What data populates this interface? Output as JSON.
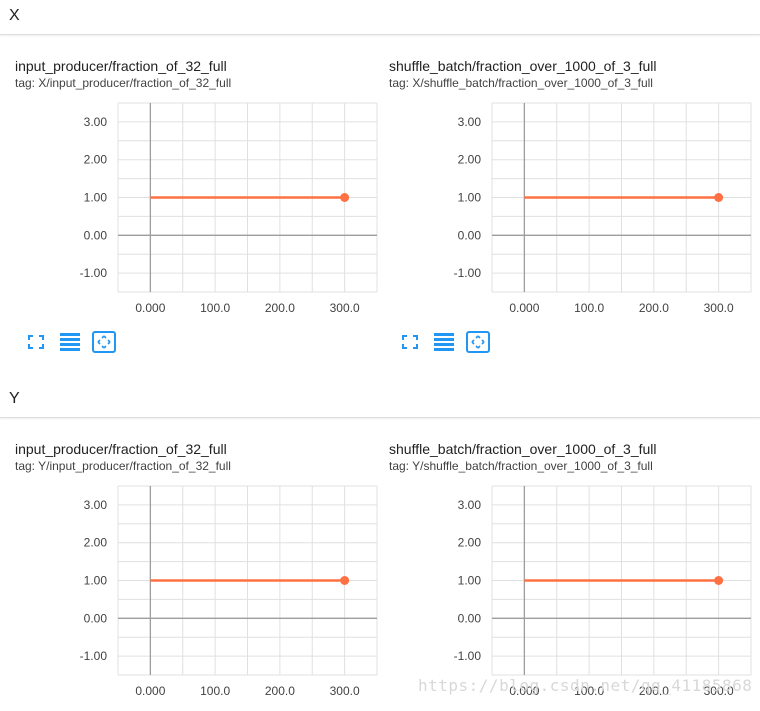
{
  "groups": [
    {
      "label": "X",
      "charts": [
        {
          "title": "input_producer/fraction_of_32_full",
          "tag": "tag: X/input_producer/fraction_of_32_full"
        },
        {
          "title": "shuffle_batch/fraction_over_1000_of_3_full",
          "tag": "tag: X/shuffle_batch/fraction_over_1000_of_3_full"
        }
      ]
    },
    {
      "label": "Y",
      "charts": [
        {
          "title": "input_producer/fraction_of_32_full",
          "tag": "tag: Y/input_producer/fraction_of_32_full"
        },
        {
          "title": "shuffle_batch/fraction_over_1000_of_3_full",
          "tag": "tag: Y/shuffle_batch/fraction_over_1000_of_3_full"
        }
      ]
    }
  ],
  "toolbar": {
    "icons": [
      "expand-icon",
      "data-selection-icon",
      "fit-domain-icon"
    ],
    "accent": "#2196f3"
  },
  "watermark": "https://blog.csdn.net/qq_41185868",
  "chart_data": [
    {
      "type": "line",
      "title": "input_producer/fraction_of_32_full",
      "x_ticks": [
        "0.000",
        "100.0",
        "200.0",
        "300.0"
      ],
      "y_ticks": [
        "3.00",
        "2.00",
        "1.00",
        "0.00",
        "-1.00"
      ],
      "xlim": [
        -50,
        350
      ],
      "ylim": [
        -1.5,
        3.5
      ],
      "grid": true,
      "series": [
        {
          "color": "#ff7043",
          "x": [
            0,
            300
          ],
          "y": [
            1,
            1
          ]
        }
      ]
    },
    {
      "type": "line",
      "title": "shuffle_batch/fraction_over_1000_of_3_full",
      "x_ticks": [
        "0.000",
        "100.0",
        "200.0",
        "300.0"
      ],
      "y_ticks": [
        "3.00",
        "2.00",
        "1.00",
        "0.00",
        "-1.00"
      ],
      "xlim": [
        -50,
        350
      ],
      "ylim": [
        -1.5,
        3.5
      ],
      "grid": true,
      "series": [
        {
          "color": "#ff7043",
          "x": [
            0,
            300
          ],
          "y": [
            1,
            1
          ]
        }
      ]
    },
    {
      "type": "line",
      "title": "input_producer/fraction_of_32_full",
      "x_ticks": [
        "0.000",
        "100.0",
        "200.0",
        "300.0"
      ],
      "y_ticks": [
        "3.00",
        "2.00",
        "1.00",
        "0.00",
        "-1.00"
      ],
      "xlim": [
        -50,
        350
      ],
      "ylim": [
        -1.5,
        3.5
      ],
      "grid": true,
      "series": [
        {
          "color": "#ff7043",
          "x": [
            0,
            300
          ],
          "y": [
            1,
            1
          ]
        }
      ]
    },
    {
      "type": "line",
      "title": "shuffle_batch/fraction_over_1000_of_3_full",
      "x_ticks": [
        "0.000",
        "100.0",
        "200.0",
        "300.0"
      ],
      "y_ticks": [
        "3.00",
        "2.00",
        "1.00",
        "0.00",
        "-1.00"
      ],
      "xlim": [
        -50,
        350
      ],
      "ylim": [
        -1.5,
        3.5
      ],
      "grid": true,
      "series": [
        {
          "color": "#ff7043",
          "x": [
            0,
            300
          ],
          "y": [
            1,
            1
          ]
        }
      ]
    }
  ]
}
